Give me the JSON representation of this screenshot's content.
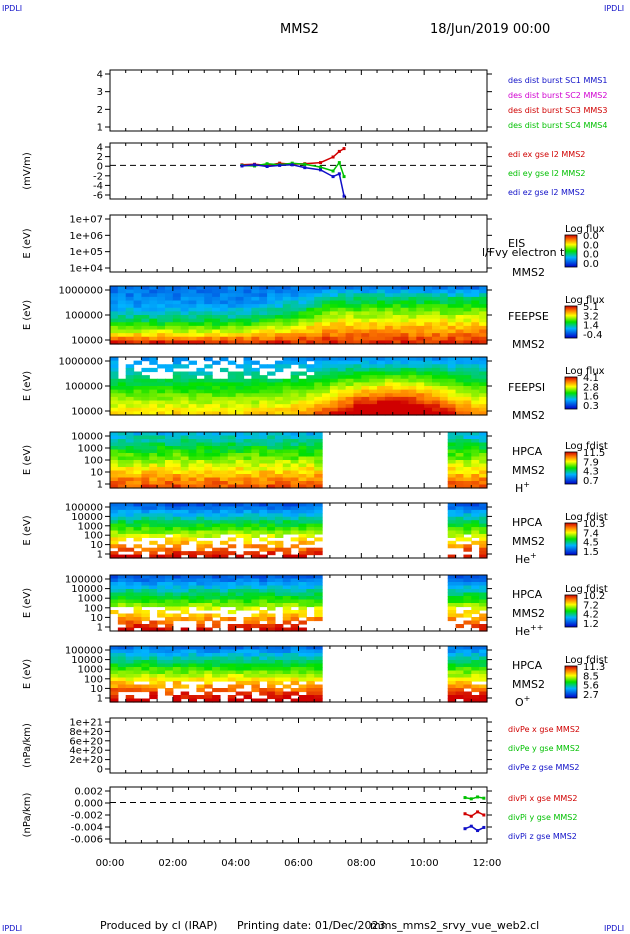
{
  "header": {
    "corner_tl": "IPDLI",
    "corner_tr": "IPDLI",
    "spacecraft": "MMS2",
    "datetime": "18/Jun/2019 00:00"
  },
  "footer": {
    "corner_bl": "IPDLI",
    "corner_br": "IPDLI",
    "produced_by": "Produced by cl (IRAP)",
    "printing_date": "Printing date: 01/Dec/2023",
    "filename": "mms_mms2_srvy_vue_web2.cl"
  },
  "colors": {
    "blue": "#1010c8",
    "magenta": "#d000d0",
    "red": "#d00000",
    "green": "#00c000"
  },
  "chart_data": [
    {
      "type": "line",
      "id": "burst",
      "yticks": [
        "4",
        "3",
        "2",
        "1"
      ],
      "legend": [
        {
          "label": "des dist burst SC1 MMS1",
          "color": "#1010c8"
        },
        {
          "label": "des dist burst SC2 MMS2",
          "color": "#d000d0"
        },
        {
          "label": "des dist burst SC3 MMS3",
          "color": "#d00000"
        },
        {
          "label": "des dist burst SC4 MMS4",
          "color": "#00c000"
        }
      ]
    },
    {
      "type": "line",
      "id": "edi",
      "ylabel": "(mV/m)",
      "yticks": [
        "4",
        "2",
        "0",
        "-2",
        "-4",
        "-6"
      ],
      "ylim": [
        -6,
        4
      ],
      "legend": [
        {
          "label": "edi ex gse l2 MMS2",
          "color": "#d00000"
        },
        {
          "label": "edi ey gse l2 MMS2",
          "color": "#00c000"
        },
        {
          "label": "edi ez gse l2 MMS2",
          "color": "#1010c8"
        }
      ],
      "series": [
        {
          "name": "edi ex gse l2 MMS2",
          "x": [
            4.2,
            4.6,
            5.0,
            5.4,
            5.8,
            6.2,
            6.7,
            7.1,
            7.3,
            7.45
          ],
          "values": [
            0.1,
            0.2,
            0.0,
            0.4,
            0.2,
            0.3,
            0.5,
            1.5,
            2.5,
            3.0
          ]
        },
        {
          "name": "edi ey gse l2 MMS2",
          "x": [
            4.2,
            4.6,
            5.0,
            5.4,
            5.8,
            6.2,
            6.7,
            7.1,
            7.3,
            7.45
          ],
          "values": [
            0.0,
            -0.1,
            0.3,
            0.1,
            0.4,
            0.2,
            -0.3,
            -1.0,
            0.5,
            -2.0
          ]
        },
        {
          "name": "edi ez gse l2 MMS2",
          "x": [
            4.2,
            4.6,
            5.0,
            5.4,
            5.8,
            6.2,
            6.7,
            7.1,
            7.3,
            7.45
          ],
          "values": [
            -0.1,
            0.1,
            -0.2,
            0.0,
            0.1,
            -0.4,
            -0.8,
            -2.0,
            -1.5,
            -5.5
          ]
        }
      ]
    },
    {
      "type": "heatmap",
      "id": "eis",
      "ylabel": "E (eV)",
      "yticks": [
        "1e+07",
        "1e+06",
        "1e+05",
        "1e+04"
      ],
      "label_lines": [
        "EIS",
        "MMS2"
      ],
      "overlay_text": "l/Fvy electron to",
      "colorbar_title": "Log flux",
      "colorbar_ticks": [
        "0.0",
        "0.0",
        "0.0",
        "0.0"
      ],
      "has_data": false
    },
    {
      "type": "heatmap",
      "id": "feepse",
      "ylabel": "E (eV)",
      "yticks": [
        "1000000",
        "100000",
        "10000"
      ],
      "label_lines": [
        "FEEPSE",
        "MMS2"
      ],
      "colorbar_title": "Log flux",
      "colorbar_ticks": [
        "5.1",
        "3.2",
        "1.4",
        "-0.4"
      ],
      "has_data": true
    },
    {
      "type": "heatmap",
      "id": "feepsi",
      "ylabel": "E (eV)",
      "yticks": [
        "1000000",
        "100000",
        "10000"
      ],
      "label_lines": [
        "FEEPSI",
        "MMS2"
      ],
      "colorbar_title": "Log flux",
      "colorbar_ticks": [
        "4.1",
        "2.8",
        "1.6",
        "0.3"
      ],
      "has_data": true
    },
    {
      "type": "heatmap",
      "id": "hpca_h",
      "ylabel": "E (eV)",
      "yticks": [
        "10000",
        "1000",
        "100",
        "10",
        "1"
      ],
      "label_lines": [
        "HPCA",
        "MMS2"
      ],
      "species": {
        "base": "H",
        "sup": "+"
      },
      "colorbar_title": "Log fdist",
      "colorbar_ticks": [
        "11.5",
        "7.9",
        "4.3",
        "0.7"
      ],
      "gap_hours": [
        6.85,
        10.65
      ],
      "has_data": true
    },
    {
      "type": "heatmap",
      "id": "hpca_he",
      "ylabel": "E (eV)",
      "yticks": [
        "100000",
        "10000",
        "1000",
        "100",
        "10",
        "1"
      ],
      "label_lines": [
        "HPCA",
        "MMS2"
      ],
      "species": {
        "base": "He",
        "sup": "+"
      },
      "colorbar_title": "Log fdist",
      "colorbar_ticks": [
        "10.3",
        "7.4",
        "4.5",
        "1.5"
      ],
      "gap_hours": [
        6.85,
        10.65
      ],
      "has_data": true
    },
    {
      "type": "heatmap",
      "id": "hpca_he2",
      "ylabel": "E (eV)",
      "yticks": [
        "100000",
        "10000",
        "1000",
        "100",
        "10",
        "1"
      ],
      "label_lines": [
        "HPCA",
        "MMS2"
      ],
      "species": {
        "base": "He",
        "sup": "++"
      },
      "colorbar_title": "Log fdist",
      "colorbar_ticks": [
        "10.2",
        "7.2",
        "4.2",
        "1.2"
      ],
      "gap_hours": [
        6.85,
        10.65
      ],
      "has_data": true
    },
    {
      "type": "heatmap",
      "id": "hpca_o",
      "ylabel": "E (eV)",
      "yticks": [
        "100000",
        "10000",
        "1000",
        "100",
        "10",
        "1"
      ],
      "label_lines": [
        "HPCA",
        "MMS2"
      ],
      "species": {
        "base": "O",
        "sup": "+"
      },
      "colorbar_title": "Log fdist",
      "colorbar_ticks": [
        "11.3",
        "8.5",
        "5.6",
        "2.7"
      ],
      "gap_hours": [
        6.85,
        10.65
      ],
      "has_data": true
    },
    {
      "type": "line",
      "id": "divpe",
      "ylabel": "(nPa/km)",
      "yticks": [
        "1e+21",
        "8e+20",
        "6e+20",
        "4e+20",
        "2e+20",
        "0"
      ],
      "legend": [
        {
          "label": "divPe x gse MMS2",
          "color": "#d00000"
        },
        {
          "label": "divPe y gse MMS2",
          "color": "#00c000"
        },
        {
          "label": "divPe z gse MMS2",
          "color": "#1010c8"
        }
      ]
    },
    {
      "type": "line",
      "id": "divpi",
      "ylabel": "(nPa/km)",
      "yticks": [
        "0.002",
        "0.000",
        "-0.002",
        "-0.004",
        "-0.006"
      ],
      "ylim": [
        -0.0065,
        0.0025
      ],
      "legend": [
        {
          "label": "divPi x gse MMS2",
          "color": "#d00000"
        },
        {
          "label": "divPi y gse MMS2",
          "color": "#00c000"
        },
        {
          "label": "divPi z gse MMS2",
          "color": "#1010c8"
        }
      ],
      "series": [
        {
          "name": "divPi x gse MMS2",
          "x": [
            11.3,
            11.5,
            11.7,
            11.9
          ],
          "values": [
            -0.0018,
            -0.0022,
            -0.0015,
            -0.002
          ]
        },
        {
          "name": "divPi y gse MMS2",
          "x": [
            11.3,
            11.5,
            11.7,
            11.9
          ],
          "values": [
            0.0008,
            0.0006,
            0.0009,
            0.0007
          ]
        },
        {
          "name": "divPi z gse MMS2",
          "x": [
            11.3,
            11.5,
            11.7,
            11.9
          ],
          "values": [
            -0.0042,
            -0.0038,
            -0.0045,
            -0.004
          ]
        }
      ]
    }
  ],
  "xaxis": {
    "ticks": [
      "00:00",
      "02:00",
      "04:00",
      "06:00",
      "08:00",
      "10:00",
      "12:00"
    ],
    "range_hours": [
      0,
      12
    ]
  }
}
